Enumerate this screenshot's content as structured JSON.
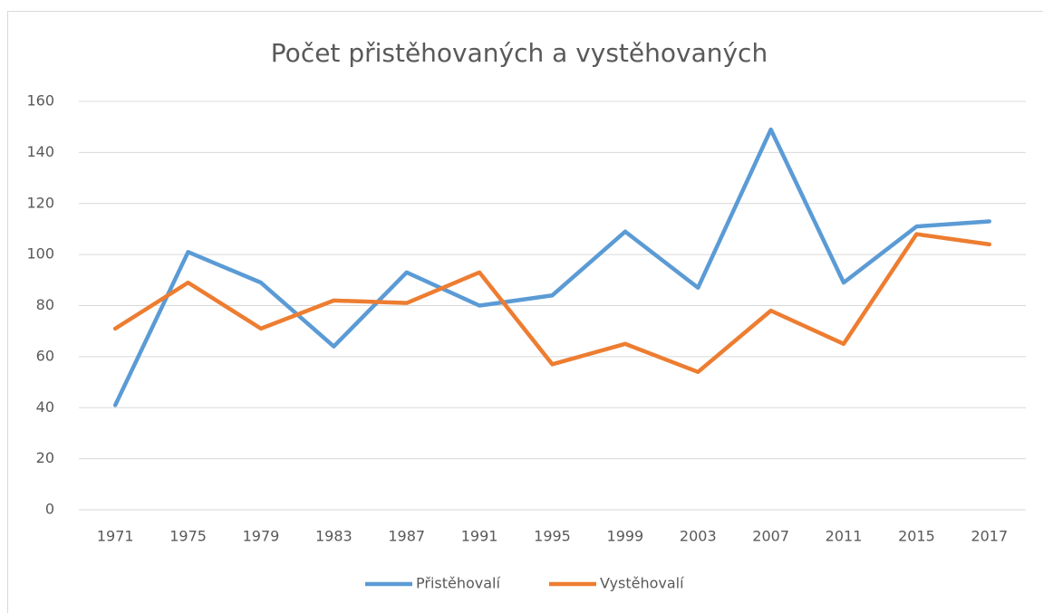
{
  "chart_data": {
    "type": "line",
    "title": "Počet přistěhovaných a vystěhovaných",
    "categories": [
      "1971",
      "1975",
      "1979",
      "1983",
      "1987",
      "1991",
      "1995",
      "1999",
      "2003",
      "2007",
      "2011",
      "2015",
      "2017"
    ],
    "series": [
      {
        "name": "Přistěhovalí",
        "color": "#5b9bd5",
        "values": [
          41,
          101,
          89,
          64,
          93,
          80,
          84,
          109,
          87,
          149,
          89,
          111,
          113
        ]
      },
      {
        "name": "Vystěhovalí",
        "color": "#ed7d31",
        "values": [
          71,
          89,
          71,
          82,
          81,
          93,
          57,
          65,
          54,
          78,
          65,
          108,
          104
        ]
      }
    ],
    "ylim": [
      0,
      160
    ],
    "yticks": [
      0,
      20,
      40,
      60,
      80,
      100,
      120,
      140,
      160
    ],
    "grid": true,
    "legend": "bottom"
  }
}
